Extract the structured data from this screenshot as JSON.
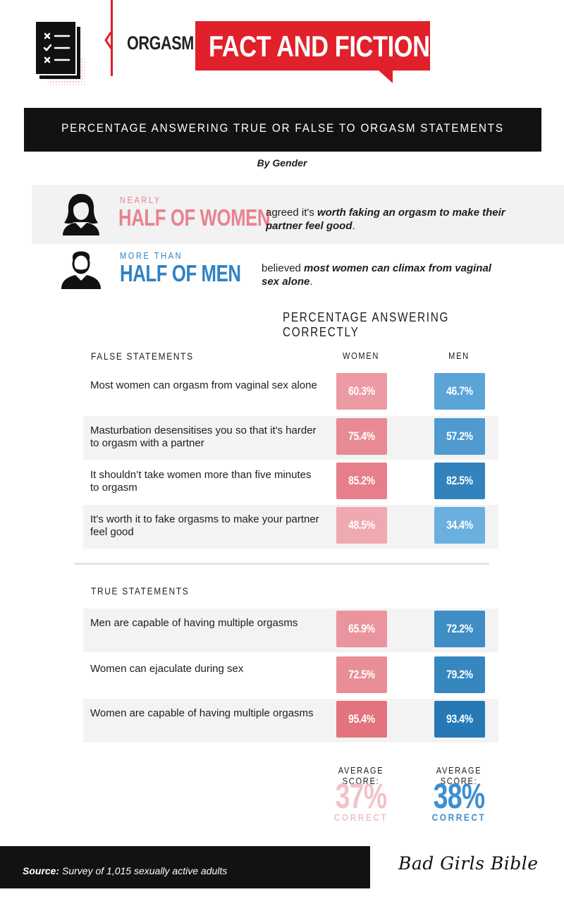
{
  "header": {
    "prefix": "ORGASM",
    "title": "FACT AND FICTION"
  },
  "banner": {
    "title": "PERCENTAGE ANSWERING TRUE OR FALSE TO ORGASM STATEMENTS",
    "subtitle": "By Gender"
  },
  "highlights": {
    "women": {
      "small": "NEARLY",
      "big": "HALF OF WOMEN",
      "desc_plain": "agreed it's ",
      "desc_bold": "worth faking an orgasm to make their partner feel good",
      "desc_end": "."
    },
    "men": {
      "small": "MORE THAN",
      "big": "HALF OF MEN",
      "desc_plain": "believed ",
      "desc_bold": "most women can climax from vaginal sex alone",
      "desc_end": "."
    }
  },
  "colors": {
    "red": "#e0202a",
    "women_pink": "#e8838f",
    "men_blue": "#2f82c4",
    "women_avg": "#f2c2c8",
    "men_avg": "#3c8fd0"
  },
  "chart_data": {
    "type": "table",
    "title": "PERCENTAGE ANSWERING CORRECTLY",
    "columns": [
      "WOMEN",
      "MEN"
    ],
    "groups": [
      {
        "name": "FALSE STATEMENTS",
        "rows": [
          {
            "statement": "Most women can orgasm from vaginal sex alone",
            "women": "60.3%",
            "men": "46.7%"
          },
          {
            "statement": "Masturbation desensitises you so that it's harder to orgasm with a partner",
            "women": "75.4%",
            "men": "57.2%"
          },
          {
            "statement": "It shouldn’t take women more than five minutes to orgasm",
            "women": "85.2%",
            "men": "82.5%"
          },
          {
            "statement": "It's worth it to fake orgasms to make your partner feel good",
            "women": "48.5%",
            "men": "34.4%"
          }
        ]
      },
      {
        "name": "TRUE STATEMENTS",
        "rows": [
          {
            "statement": "Men are capable of having multiple orgasms",
            "women": "65.9%",
            "men": "72.2%"
          },
          {
            "statement": "Women can ejaculate during sex",
            "women": "72.5%",
            "men": "79.2%"
          },
          {
            "statement": "Women are capable of having multiple orgasms",
            "women": "95.4%",
            "men": "93.4%"
          }
        ]
      }
    ],
    "averages": {
      "label": "AVERAGE SCORE:",
      "women": "37%",
      "men": "38%",
      "suffix": "CORRECT"
    }
  },
  "footer": {
    "source_label": "Source:",
    "source_text": " Survey of 1,015 sexually active adults",
    "brand": "Bad Girls Bible"
  }
}
